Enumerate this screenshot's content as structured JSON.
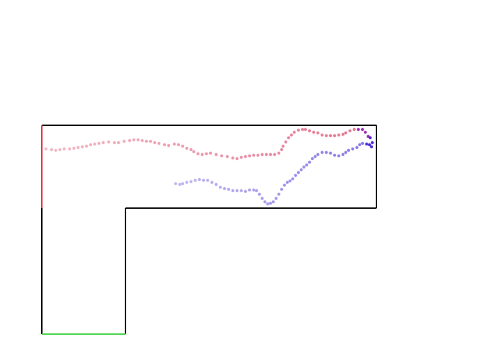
{
  "colors": {
    "background": "#ffffff",
    "wall": "#000000",
    "start_edge": "#e03040",
    "goal_edge": "#40d040",
    "trail_red": "#e06080",
    "trail_blue": "#7060e0",
    "trail_purple": "#9010a0",
    "trail_dark_blue": "#3010d0"
  },
  "icons": {
    "start": "start-edge-marker",
    "goal": "goal-edge-marker"
  }
}
